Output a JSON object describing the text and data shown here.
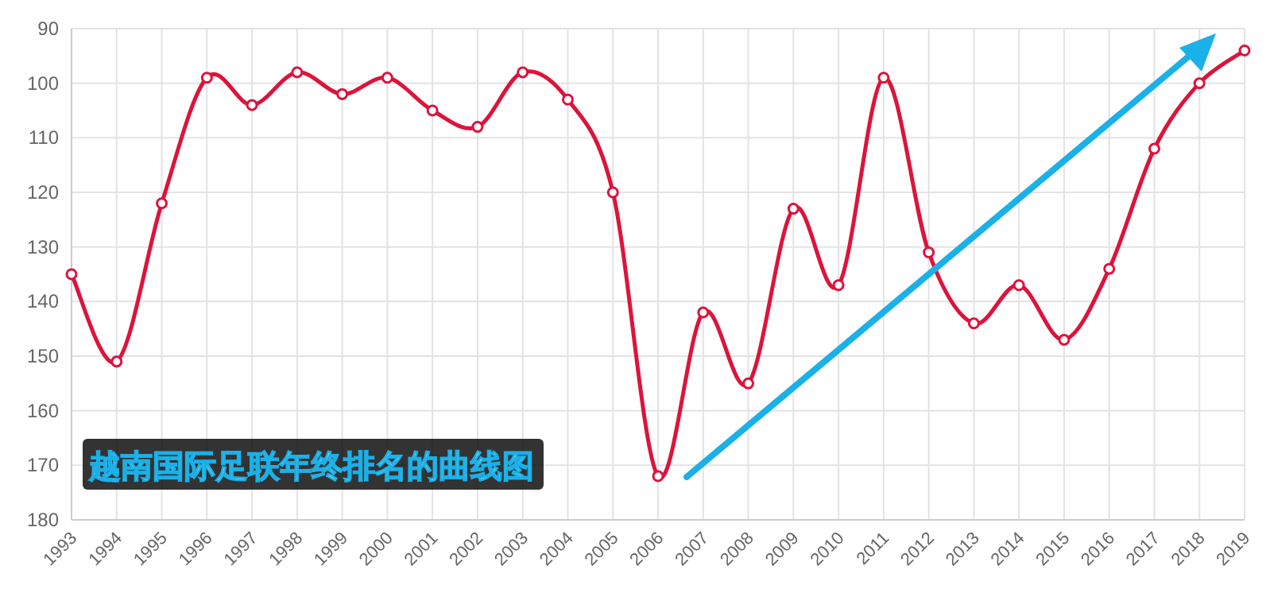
{
  "chart_data": {
    "type": "line",
    "title": "越南国际足联年终排名的曲线图",
    "categories": [
      "1993",
      "1994",
      "1995",
      "1996",
      "1997",
      "1998",
      "1999",
      "2000",
      "2001",
      "2002",
      "2003",
      "2004",
      "2005",
      "2006",
      "2007",
      "2008",
      "2009",
      "2010",
      "2011",
      "2012",
      "2013",
      "2014",
      "2015",
      "2016",
      "2017",
      "2018",
      "2019"
    ],
    "series": [
      {
        "color": "#dc143c",
        "values": [
          135,
          151,
          122,
          99,
          104,
          98,
          102,
          99,
          105,
          108,
          98,
          103,
          120,
          172,
          142,
          155,
          123,
          137,
          99,
          131,
          144,
          137,
          147,
          134,
          112,
          100,
          94
        ]
      }
    ],
    "ylim": [
      180,
      90
    ],
    "yticks": [
      90,
      100,
      110,
      120,
      130,
      140,
      150,
      160,
      170,
      180
    ],
    "grid": true,
    "marker": "circle"
  }
}
